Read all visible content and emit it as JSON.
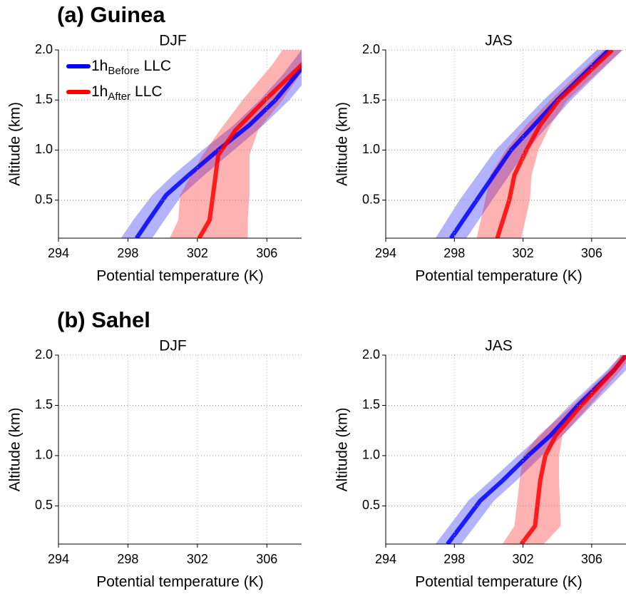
{
  "chart_data": [
    {
      "type": "line",
      "panel_title": "(a) Guinea",
      "title": "DJF",
      "xlabel": "Potential temperature (K)",
      "ylabel": "Altitude (km)",
      "xlim": [
        294,
        308
      ],
      "ylim": [
        0.12,
        2.0
      ],
      "xticks": [
        294,
        298,
        302,
        306
      ],
      "yticks": [
        0.5,
        {
          "value": 1,
          "label": "1.0"
        },
        1.5,
        {
          "value": 2,
          "label": "2.0"
        }
      ],
      "grid": true,
      "legend": "upper left",
      "series": [
        {
          "name": [
            "1h",
            "Before",
            "LLC"
          ],
          "color": "#0000ff",
          "y": [
            0.12,
            0.3,
            0.55,
            0.75,
            1.0,
            1.25,
            1.5,
            1.75,
            2.0
          ],
          "values": [
            298.5,
            299.2,
            300.2,
            301.5,
            303.2,
            305.0,
            306.5,
            307.7,
            308.8
          ],
          "lower": [
            297.6,
            298.3,
            299.4,
            300.6,
            302.3,
            304.1,
            305.6,
            306.9,
            308.0
          ],
          "upper": [
            299.4,
            300.1,
            301.1,
            302.4,
            304.1,
            305.8,
            307.3,
            308.5,
            309.6
          ]
        },
        {
          "name": [
            "1h",
            "After",
            "LLC"
          ],
          "color": "#ff0000",
          "y": [
            0.12,
            0.3,
            0.55,
            0.95,
            1.2,
            1.5,
            1.85,
            2.0
          ],
          "values": [
            302.1,
            302.7,
            302.9,
            303.2,
            304.2,
            305.9,
            308.0,
            308.8
          ],
          "lower": [
            300.4,
            300.9,
            301.0,
            302.3,
            303.3,
            304.6,
            306.3,
            306.9
          ],
          "upper": [
            304.9,
            304.9,
            305.0,
            305.0,
            305.5,
            306.9,
            308.3,
            309.0
          ]
        }
      ]
    },
    {
      "type": "line",
      "title": "JAS",
      "xlabel": "Potential temperature (K)",
      "ylabel": "Altitude (km)",
      "xlim": [
        294,
        308
      ],
      "ylim": [
        0.12,
        2.0
      ],
      "xticks": [
        294,
        298,
        302,
        306
      ],
      "yticks": [
        0.5,
        {
          "value": 1,
          "label": "1.0"
        },
        1.5,
        {
          "value": 2,
          "label": "2.0"
        }
      ],
      "grid": true,
      "series": [
        {
          "color": "#0000ff",
          "y": [
            0.12,
            0.5,
            1.0,
            1.5,
            2.0
          ],
          "values": [
            297.8,
            299.3,
            301.3,
            304.0,
            307.0
          ],
          "lower": [
            296.9,
            298.3,
            300.4,
            303.2,
            306.3
          ],
          "upper": [
            298.7,
            300.2,
            302.2,
            304.8,
            307.8
          ]
        },
        {
          "color": "#ff0000",
          "y": [
            0.12,
            0.5,
            0.75,
            1.0,
            1.25,
            1.5,
            2.0
          ],
          "values": [
            300.5,
            301.2,
            301.5,
            302.2,
            303.0,
            304.1,
            307.2
          ],
          "lower": [
            299.3,
            299.8,
            300.1,
            301.0,
            302.2,
            303.6,
            306.7
          ],
          "upper": [
            301.9,
            302.4,
            302.5,
            302.9,
            303.6,
            304.6,
            307.8
          ]
        }
      ]
    },
    {
      "type": "line",
      "panel_title": "(b) Sahel",
      "title": "DJF",
      "xlabel": "Potential temperature (K)",
      "ylabel": "Altitude (km)",
      "xlim": [
        294,
        308
      ],
      "ylim": [
        0.12,
        2.0
      ],
      "xticks": [
        294,
        298,
        302,
        306
      ],
      "yticks": [
        0.5,
        {
          "value": 1,
          "label": "1.0"
        },
        1.5,
        {
          "value": 2,
          "label": "2.0"
        }
      ],
      "grid": true,
      "series": []
    },
    {
      "type": "line",
      "title": "JAS",
      "xlabel": "Potential temperature (K)",
      "ylabel": "Altitude (km)",
      "xlim": [
        294,
        308
      ],
      "ylim": [
        0.12,
        2.0
      ],
      "xticks": [
        294,
        298,
        302,
        306
      ],
      "yticks": [
        0.5,
        {
          "value": 1,
          "label": "1.0"
        },
        1.5,
        {
          "value": 2,
          "label": "2.0"
        }
      ],
      "grid": true,
      "series": [
        {
          "color": "#0000ff",
          "y": [
            0.12,
            0.55,
            0.75,
            1.0,
            1.2,
            1.5,
            1.85,
            2.0
          ],
          "values": [
            297.6,
            299.5,
            300.8,
            302.3,
            303.6,
            305.2,
            307.3,
            308.0
          ],
          "lower": [
            296.9,
            298.8,
            300.1,
            301.7,
            303.0,
            304.7,
            306.9,
            307.7
          ],
          "upper": [
            298.4,
            300.3,
            301.6,
            303.1,
            304.3,
            306.0,
            308.0,
            308.7
          ]
        },
        {
          "color": "#ff0000",
          "y": [
            0.12,
            0.3,
            0.75,
            1.0,
            1.2,
            1.5,
            1.85,
            2.0
          ],
          "values": [
            301.9,
            302.7,
            303.0,
            303.3,
            303.9,
            305.4,
            307.3,
            308.0
          ],
          "lower": [
            300.8,
            301.5,
            301.8,
            302.0,
            302.9,
            304.9,
            307.0,
            307.7
          ],
          "upper": [
            303.2,
            304.2,
            304.1,
            304.1,
            304.3,
            305.9,
            307.7,
            308.3
          ]
        }
      ]
    }
  ]
}
